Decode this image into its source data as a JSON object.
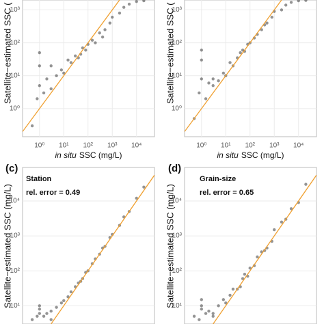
{
  "chart_data": [
    {
      "type": "scatter",
      "ylabel": "Satellite−estimated SSC (",
      "xlabel_italic": "in situ",
      "xlabel": "SSC (mg/L)",
      "xlim": [
        0.2,
        55000
      ],
      "ylim": [
        0.14,
        2000
      ],
      "xticks": [
        {
          "value": 1,
          "label": "10⁰"
        },
        {
          "value": 10,
          "label": "10¹"
        },
        {
          "value": 100,
          "label": "10²"
        },
        {
          "value": 1000,
          "label": "10³"
        },
        {
          "value": 10000,
          "label": "10⁴"
        }
      ],
      "yticks": [
        {
          "value": 1,
          "label": "10⁰"
        },
        {
          "value": 10,
          "label": "10¹"
        },
        {
          "value": 100,
          "label": "10²"
        },
        {
          "value": 1000,
          "label": "10³"
        }
      ],
      "color": "#111111",
      "line_color": "#f0a030",
      "log": true,
      "grid": true,
      "x": [
        0.5,
        0.8,
        1,
        1,
        1,
        1.5,
        2,
        3,
        5,
        8,
        10,
        15,
        20,
        30,
        50,
        60,
        80,
        100,
        150,
        200,
        300,
        500,
        800,
        1000,
        2000,
        3000,
        5000,
        10000,
        20000,
        3,
        40,
        400
      ],
      "y": [
        0.3,
        2,
        5,
        20,
        50,
        3,
        8,
        4,
        10,
        15,
        12,
        30,
        25,
        40,
        45,
        70,
        60,
        90,
        120,
        100,
        200,
        250,
        400,
        600,
        800,
        1200,
        1500,
        1800,
        1900,
        20,
        35,
        150
      ]
    },
    {
      "type": "scatter",
      "ylabel": "Satellite−estimated SSC (",
      "xlabel_italic": "in situ",
      "xlabel": "SSC (mg/L)",
      "xlim": [
        0.2,
        55000
      ],
      "ylim": [
        0.14,
        2000
      ],
      "xticks": [
        {
          "value": 1,
          "label": "10⁰"
        },
        {
          "value": 10,
          "label": "10¹"
        },
        {
          "value": 100,
          "label": "10²"
        },
        {
          "value": 1000,
          "label": "10³"
        },
        {
          "value": 10000,
          "label": "10⁴"
        }
      ],
      "yticks": [
        {
          "value": 1,
          "label": "10⁰"
        },
        {
          "value": 10,
          "label": "10¹"
        },
        {
          "value": 100,
          "label": "10²"
        },
        {
          "value": 1000,
          "label": "10³"
        }
      ],
      "color": "#111111",
      "line_color": "#f0a030",
      "log": true,
      "grid": true,
      "x": [
        0.5,
        0.8,
        1,
        1,
        1,
        1.5,
        2,
        3,
        5,
        8,
        10,
        15,
        20,
        30,
        50,
        60,
        80,
        100,
        150,
        200,
        300,
        500,
        800,
        1000,
        2000,
        3000,
        5000,
        10000,
        20000,
        3,
        40,
        400
      ],
      "y": [
        0.5,
        3,
        8,
        30,
        60,
        2,
        6,
        5,
        7,
        12,
        10,
        25,
        20,
        35,
        60,
        55,
        90,
        100,
        140,
        180,
        250,
        400,
        600,
        900,
        1000,
        1400,
        1700,
        1900,
        1950,
        8,
        50,
        350
      ]
    },
    {
      "type": "scatter",
      "panel": "(c)",
      "method": "Station",
      "error": "rel. error = 0.49",
      "ylabel": "Satellite−estimated SSC (mg/L)",
      "xlim": [
        0.2,
        55000
      ],
      "ylim": [
        3,
        91000
      ],
      "yticks": [
        {
          "value": 10,
          "label": "10¹"
        },
        {
          "value": 100,
          "label": "10²"
        },
        {
          "value": 1000,
          "label": "10³"
        },
        {
          "value": 10000,
          "label": "10⁴"
        }
      ],
      "color": "#111111",
      "line_color": "#f0a030",
      "log": true,
      "grid": true,
      "x": [
        0.5,
        0.8,
        1,
        1,
        1,
        1.5,
        2,
        3,
        5,
        8,
        10,
        15,
        20,
        30,
        50,
        60,
        80,
        100,
        150,
        200,
        300,
        500,
        800,
        1000,
        2000,
        3000,
        5000,
        10000,
        20000,
        3,
        40,
        400
      ],
      "y": [
        4,
        5,
        6,
        8,
        10,
        5,
        6,
        7,
        9,
        12,
        14,
        18,
        25,
        35,
        50,
        60,
        90,
        100,
        160,
        220,
        300,
        500,
        900,
        1100,
        2000,
        3500,
        5000,
        12000,
        25000,
        4,
        45,
        450
      ]
    },
    {
      "type": "scatter",
      "panel": "(d)",
      "method": "Grain-size",
      "error": "rel. error = 0.65",
      "ylabel": "Satellite−estimated SSC (mg/L)",
      "xlim": [
        0.2,
        55000
      ],
      "ylim": [
        3,
        91000
      ],
      "yticks": [
        {
          "value": 10,
          "label": "10¹"
        },
        {
          "value": 100,
          "label": "10²"
        },
        {
          "value": 1000,
          "label": "10³"
        },
        {
          "value": 10000,
          "label": "10⁴"
        }
      ],
      "color": "#111111",
      "line_color": "#f0a030",
      "log": true,
      "grid": true,
      "x": [
        0.5,
        0.8,
        1,
        1,
        1,
        1.5,
        2,
        3,
        5,
        8,
        10,
        15,
        20,
        30,
        50,
        60,
        80,
        100,
        150,
        200,
        300,
        500,
        800,
        1000,
        2000,
        3000,
        5000,
        10000,
        20000,
        3,
        40,
        400
      ],
      "y": [
        5,
        4,
        8,
        10,
        15,
        6,
        7,
        6,
        10,
        15,
        12,
        20,
        30,
        30,
        60,
        80,
        70,
        120,
        140,
        250,
        350,
        450,
        700,
        1500,
        2500,
        3000,
        6000,
        9000,
        30000,
        5,
        35,
        380
      ]
    }
  ]
}
